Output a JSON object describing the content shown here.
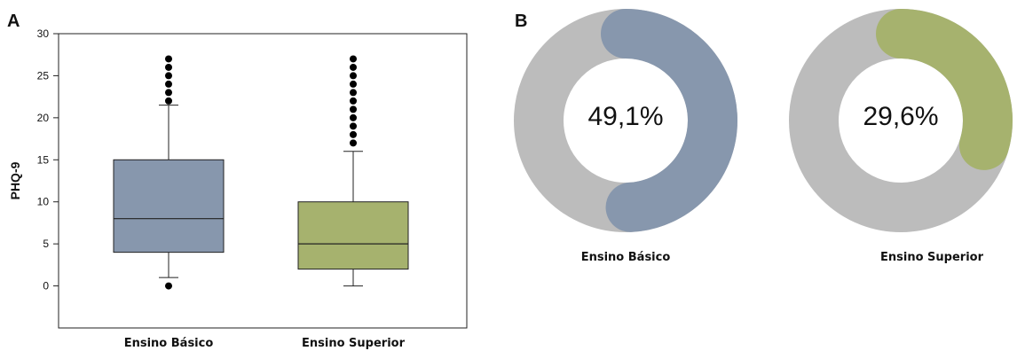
{
  "panels": {
    "a": "A",
    "b": "B"
  },
  "chart_data": [
    {
      "type": "box",
      "ylabel": "PHQ-9",
      "ylim": [
        -5,
        30
      ],
      "yticks": [
        0,
        5,
        10,
        15,
        20,
        25,
        30
      ],
      "categories": [
        "Ensino Básico",
        "Ensino Superior"
      ],
      "colors": [
        "#8797ad",
        "#a6b26e"
      ],
      "boxes": [
        {
          "whisker_low": 1,
          "q1": 4,
          "median": 8,
          "q3": 15,
          "whisker_high": 21.5,
          "outliers": [
            0,
            22,
            23,
            24,
            25,
            26,
            27
          ]
        },
        {
          "whisker_low": 0,
          "q1": 2,
          "median": 5,
          "q3": 10,
          "whisker_high": 16,
          "outliers": [
            17,
            18,
            19,
            20,
            21,
            22,
            23,
            24,
            25,
            26,
            27
          ]
        }
      ],
      "grid": false
    },
    {
      "type": "pie",
      "subtype": "donut",
      "categories": [
        "Ensino Básico",
        "Ensino Superior"
      ],
      "values": [
        49.1,
        29.6
      ],
      "labels": [
        "49,1%",
        "29,6%"
      ],
      "colors": [
        "#8797ad",
        "#a6b26e"
      ],
      "track_color": "#bcbcbc"
    }
  ]
}
